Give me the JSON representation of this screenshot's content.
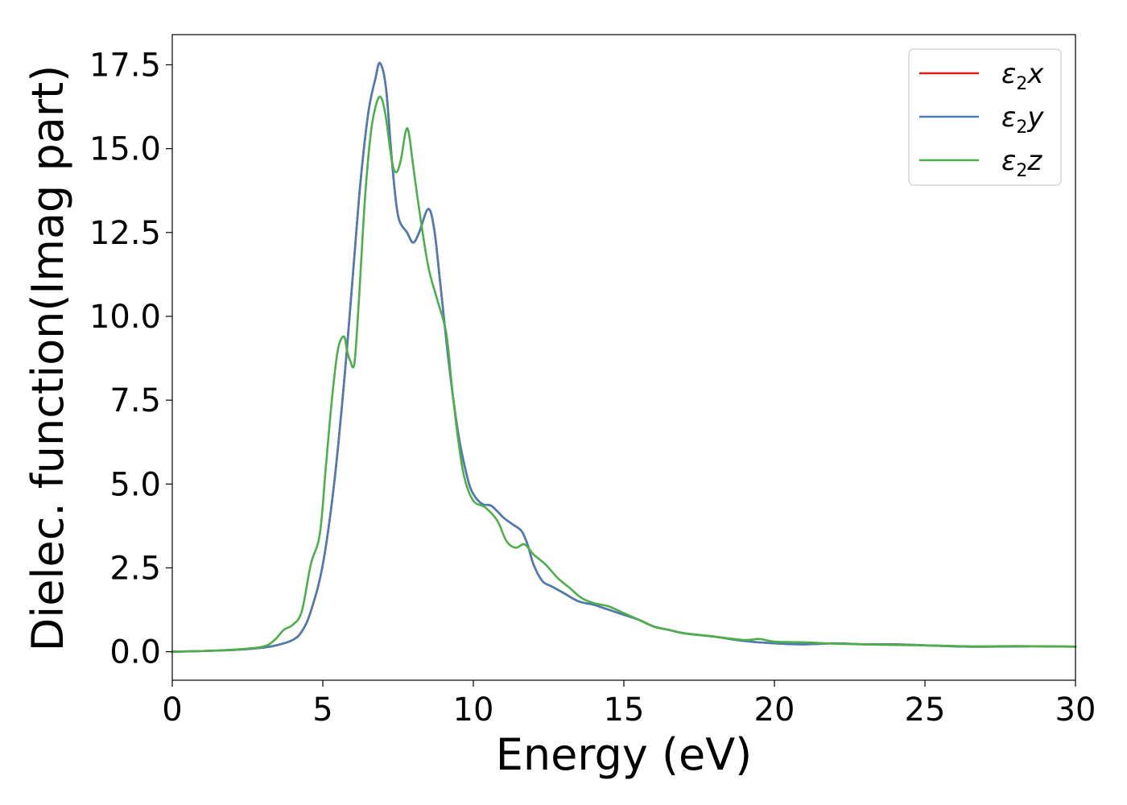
{
  "chart_data": {
    "type": "line",
    "title": "",
    "xlabel": "Energy (eV)",
    "ylabel": "Dielec. function(Imag part)",
    "xlim": [
      0,
      30
    ],
    "ylim": [
      -0.85,
      18.4
    ],
    "xticks": [
      0,
      5,
      10,
      15,
      20,
      25,
      30
    ],
    "xtick_labels": [
      "0",
      "5",
      "10",
      "15",
      "20",
      "25",
      "30"
    ],
    "yticks": [
      0.0,
      2.5,
      5.0,
      7.5,
      10.0,
      12.5,
      15.0,
      17.5
    ],
    "ytick_labels": [
      "0.0",
      "2.5",
      "5.0",
      "7.5",
      "10.0",
      "12.5",
      "15.0",
      "17.5"
    ],
    "grid": false,
    "legend_position": "top-right",
    "series": [
      {
        "name": "ε2x",
        "legend_main": "ε",
        "legend_sub": "2",
        "legend_tail": "x",
        "color": "#e41a1c",
        "x": [
          0,
          1,
          2,
          3,
          3.5,
          4,
          4.3,
          4.6,
          5.0,
          5.4,
          5.8,
          6.2,
          6.5,
          6.75,
          6.9,
          7.1,
          7.3,
          7.5,
          7.8,
          8.0,
          8.2,
          8.5,
          8.7,
          8.9,
          9.2,
          9.5,
          9.8,
          10.0,
          10.3,
          10.6,
          11.0,
          11.3,
          11.6,
          11.8,
          12.0,
          12.3,
          12.6,
          13.0,
          13.5,
          14.0,
          14.5,
          15.0,
          15.5,
          16.0,
          16.5,
          17.0,
          18.0,
          19.0,
          20.0,
          21.0,
          22.0,
          23.0,
          24.0,
          25.0,
          26.0,
          27.0,
          28.0,
          29.0,
          30.0
        ],
        "y": [
          0.0,
          0.02,
          0.05,
          0.12,
          0.2,
          0.35,
          0.6,
          1.2,
          2.6,
          5.2,
          9.0,
          13.5,
          16.0,
          17.1,
          17.55,
          16.8,
          14.6,
          13.0,
          12.5,
          12.2,
          12.5,
          13.2,
          12.6,
          11.0,
          8.5,
          6.5,
          5.2,
          4.7,
          4.4,
          4.35,
          4.0,
          3.8,
          3.6,
          3.2,
          2.6,
          2.1,
          1.95,
          1.75,
          1.5,
          1.4,
          1.25,
          1.1,
          0.95,
          0.75,
          0.65,
          0.55,
          0.45,
          0.32,
          0.25,
          0.22,
          0.25,
          0.22,
          0.22,
          0.19,
          0.16,
          0.15,
          0.16,
          0.16,
          0.15
        ]
      },
      {
        "name": "ε2y",
        "legend_main": "ε",
        "legend_sub": "2",
        "legend_tail": "y",
        "color": "#4a7db5",
        "x": [
          0,
          1,
          2,
          3,
          3.5,
          4,
          4.3,
          4.6,
          5.0,
          5.4,
          5.8,
          6.2,
          6.5,
          6.75,
          6.9,
          7.1,
          7.3,
          7.5,
          7.8,
          8.0,
          8.2,
          8.5,
          8.7,
          8.9,
          9.2,
          9.5,
          9.8,
          10.0,
          10.3,
          10.6,
          11.0,
          11.3,
          11.6,
          11.8,
          12.0,
          12.3,
          12.6,
          13.0,
          13.5,
          14.0,
          14.5,
          15.0,
          15.5,
          16.0,
          16.5,
          17.0,
          18.0,
          19.0,
          20.0,
          21.0,
          22.0,
          23.0,
          24.0,
          25.0,
          26.0,
          27.0,
          28.0,
          29.0,
          30.0
        ],
        "y": [
          0.0,
          0.02,
          0.05,
          0.12,
          0.2,
          0.35,
          0.6,
          1.2,
          2.6,
          5.2,
          9.0,
          13.5,
          16.0,
          17.1,
          17.55,
          16.8,
          14.6,
          13.0,
          12.5,
          12.2,
          12.5,
          13.2,
          12.6,
          11.0,
          8.5,
          6.5,
          5.2,
          4.7,
          4.4,
          4.35,
          4.0,
          3.8,
          3.6,
          3.2,
          2.6,
          2.1,
          1.95,
          1.75,
          1.5,
          1.4,
          1.25,
          1.1,
          0.95,
          0.75,
          0.65,
          0.55,
          0.45,
          0.32,
          0.25,
          0.22,
          0.25,
          0.22,
          0.22,
          0.19,
          0.16,
          0.15,
          0.16,
          0.16,
          0.15
        ]
      },
      {
        "name": "ε2z",
        "legend_main": "ε",
        "legend_sub": "2",
        "legend_tail": "z",
        "color": "#4daf4a",
        "x": [
          0,
          1,
          2,
          3,
          3.4,
          3.7,
          4.0,
          4.3,
          4.6,
          4.9,
          5.1,
          5.3,
          5.5,
          5.7,
          5.8,
          5.9,
          6.05,
          6.2,
          6.4,
          6.6,
          6.8,
          6.95,
          7.1,
          7.3,
          7.45,
          7.6,
          7.75,
          7.85,
          8.0,
          8.2,
          8.5,
          8.8,
          9.1,
          9.3,
          9.5,
          9.7,
          10.0,
          10.4,
          10.8,
          11.1,
          11.4,
          11.7,
          12.0,
          12.4,
          12.8,
          13.2,
          13.6,
          14.0,
          14.5,
          15.0,
          15.5,
          16.0,
          16.5,
          17.0,
          18.0,
          19.0,
          19.5,
          20.0,
          21.0,
          22.0,
          23.0,
          24.0,
          25.0,
          26.0,
          27.0,
          28.0,
          29.0,
          30.0
        ],
        "y": [
          0.0,
          0.02,
          0.06,
          0.15,
          0.35,
          0.65,
          0.8,
          1.2,
          2.6,
          3.5,
          5.5,
          7.5,
          9.0,
          9.4,
          9.0,
          8.7,
          8.6,
          10.5,
          13.5,
          15.5,
          16.4,
          16.5,
          15.9,
          14.6,
          14.3,
          14.7,
          15.5,
          15.5,
          14.5,
          13.2,
          11.5,
          10.5,
          9.5,
          7.8,
          6.3,
          5.2,
          4.5,
          4.3,
          3.9,
          3.3,
          3.1,
          3.2,
          2.9,
          2.6,
          2.2,
          1.9,
          1.6,
          1.45,
          1.35,
          1.15,
          0.95,
          0.75,
          0.65,
          0.55,
          0.45,
          0.35,
          0.38,
          0.3,
          0.28,
          0.24,
          0.22,
          0.2,
          0.19,
          0.17,
          0.16,
          0.17,
          0.16,
          0.15
        ]
      }
    ]
  }
}
